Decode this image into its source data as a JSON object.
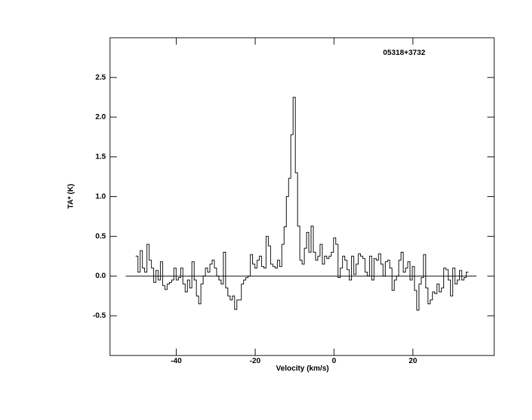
{
  "chart_data": {
    "type": "step",
    "annotation": "05318+3732",
    "xlabel": "Velocity (km/s)",
    "ylabel": "TA* (K)",
    "color": "#000000",
    "xlim": [
      -56.8,
      40.6
    ],
    "ylim": [
      -1.0,
      3.0
    ],
    "xticks": [
      -40,
      -20,
      0,
      20
    ],
    "yticks": [
      -0.5,
      {
        "value": 0.0,
        "label": "0.0"
      },
      0.5,
      {
        "value": 1.0,
        "label": "1.0"
      },
      1.5,
      {
        "value": 2.0,
        "label": "2.0"
      },
      2.5
    ],
    "baseline": {
      "value": 0.0,
      "x": [
        -52.8,
        36.1
      ]
    },
    "x": [
      -50.0,
      -49.43,
      -48.86,
      -48.29,
      -47.72,
      -47.15,
      -46.58,
      -46.01,
      -45.44,
      -44.87,
      -44.3,
      -43.73,
      -43.16,
      -42.59,
      -42.02,
      -41.45,
      -40.88,
      -40.31,
      -39.74,
      -39.17,
      -38.6,
      -38.03,
      -37.46,
      -36.89,
      -36.32,
      -35.75,
      -35.18,
      -34.61,
      -34.04,
      -33.47,
      -32.9,
      -32.33,
      -31.76,
      -31.19,
      -30.62,
      -30.05,
      -29.48,
      -28.91,
      -28.34,
      -27.77,
      -27.2,
      -26.63,
      -26.06,
      -25.49,
      -24.92,
      -24.35,
      -23.78,
      -23.21,
      -22.64,
      -22.07,
      -21.5,
      -20.93,
      -20.36,
      -19.79,
      -19.22,
      -18.65,
      -18.08,
      -17.51,
      -16.94,
      -16.37,
      -15.8,
      -15.23,
      -14.66,
      -14.09,
      -13.52,
      -12.95,
      -12.38,
      -11.81,
      -11.24,
      -10.67,
      -10.1,
      -9.53,
      -8.96,
      -8.39,
      -7.82,
      -7.25,
      -6.68,
      -6.11,
      -5.54,
      -4.97,
      -4.4,
      -3.83,
      -3.26,
      -2.69,
      -2.12,
      -1.55,
      -0.98,
      -0.41,
      0.16,
      0.73,
      1.3,
      1.87,
      2.44,
      3.01,
      3.58,
      4.15,
      4.72,
      5.29,
      5.86,
      6.43,
      7.0,
      7.57,
      8.14,
      8.71,
      9.28,
      9.85,
      10.42,
      10.99,
      11.56,
      12.13,
      12.7,
      13.27,
      13.84,
      14.41,
      14.98,
      15.55,
      16.12,
      16.69,
      17.26,
      17.83,
      18.4,
      18.97,
      19.54,
      20.11,
      20.68,
      21.25,
      21.82,
      22.39,
      22.96,
      23.53,
      24.1,
      24.67,
      25.24,
      25.81,
      26.38,
      26.95,
      27.52,
      28.09,
      28.66,
      29.23,
      29.8,
      30.37,
      30.94,
      31.51,
      32.08,
      32.65,
      33.22,
      33.79
    ],
    "values": [
      0.25,
      0.05,
      0.32,
      0.1,
      0.05,
      0.4,
      0.2,
      0.1,
      -0.08,
      0.07,
      -0.05,
      0.18,
      -0.12,
      -0.17,
      -0.1,
      -0.08,
      -0.05,
      0.1,
      -0.05,
      -0.02,
      0.1,
      -0.1,
      -0.2,
      -0.05,
      -0.15,
      0.18,
      -0.05,
      -0.25,
      -0.35,
      -0.1,
      0.0,
      0.1,
      0.05,
      0.15,
      0.2,
      0.1,
      0.0,
      -0.05,
      -0.1,
      0.3,
      -0.15,
      -0.25,
      -0.3,
      -0.25,
      -0.42,
      -0.3,
      -0.3,
      -0.1,
      -0.05,
      -0.02,
      0.0,
      0.27,
      0.15,
      0.1,
      0.2,
      0.25,
      0.12,
      0.1,
      0.5,
      0.38,
      0.15,
      0.12,
      0.1,
      0.2,
      0.12,
      0.4,
      0.62,
      1.0,
      1.23,
      1.78,
      2.25,
      1.3,
      0.63,
      0.2,
      0.15,
      0.35,
      0.55,
      0.3,
      0.63,
      0.3,
      0.2,
      0.25,
      0.4,
      0.15,
      0.25,
      0.22,
      0.25,
      0.3,
      0.48,
      0.4,
      -0.02,
      0.1,
      0.25,
      0.2,
      0.08,
      -0.05,
      0.25,
      0.02,
      0.15,
      0.28,
      0.25,
      0.22,
      0.05,
      0.0,
      0.25,
      -0.05,
      0.22,
      0.2,
      0.28,
      0.15,
      0.0,
      0.18,
      0.2,
      0.1,
      -0.18,
      -0.05,
      0.0,
      0.2,
      0.3,
      0.05,
      0.1,
      0.18,
      -0.05,
      0.12,
      -0.18,
      -0.43,
      -0.1,
      -0.02,
      0.27,
      -0.15,
      -0.35,
      -0.3,
      -0.2,
      -0.22,
      -0.1,
      -0.2,
      -0.15,
      0.1,
      0.08,
      -0.05,
      -0.25,
      0.1,
      -0.1,
      -0.05,
      0.07,
      -0.05,
      -0.02,
      0.05
    ]
  }
}
